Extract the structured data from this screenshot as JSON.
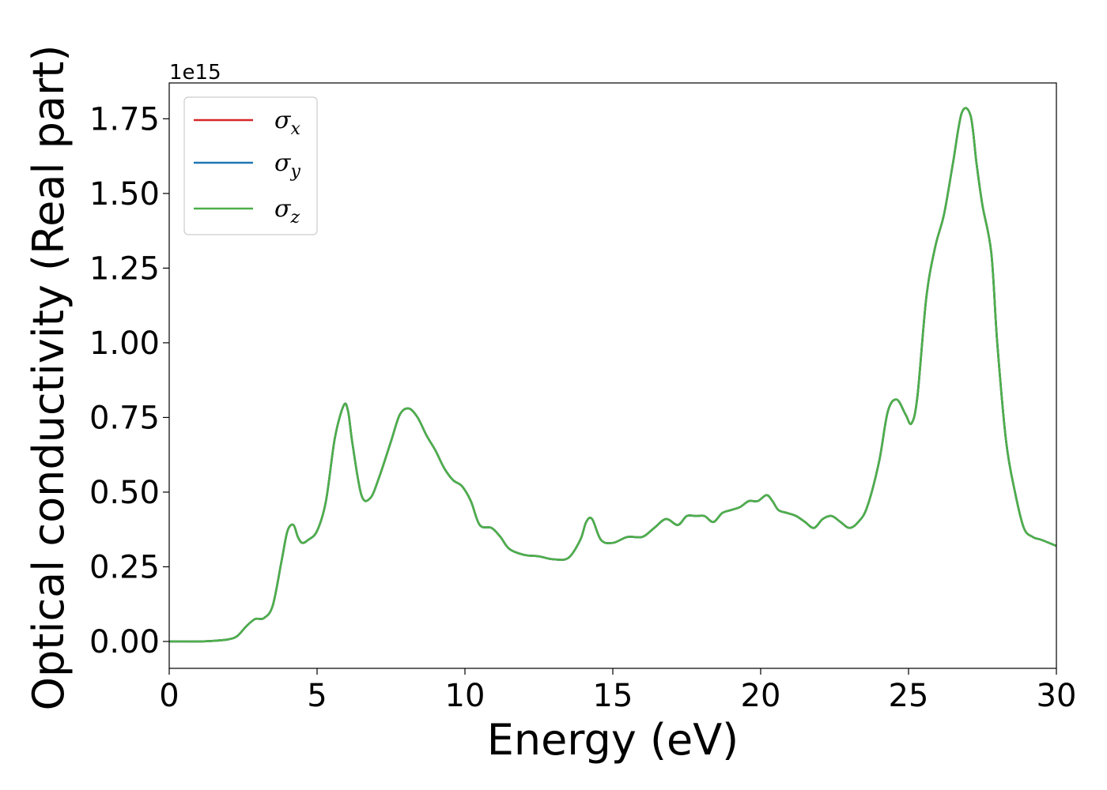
{
  "chart_data": {
    "type": "line",
    "title": "",
    "xlabel": "Energy (eV)",
    "ylabel": "Optical conductivity (Real part)",
    "y_offset_label": "1e15",
    "xlim": [
      0,
      30
    ],
    "ylim": [
      -0.09,
      1.87
    ],
    "x_ticks": [
      0,
      5,
      10,
      15,
      20,
      25,
      30
    ],
    "x_tick_labels": [
      "0",
      "5",
      "10",
      "15",
      "20",
      "25",
      "30"
    ],
    "y_ticks": [
      0.0,
      0.25,
      0.5,
      0.75,
      1.0,
      1.25,
      1.5,
      1.75
    ],
    "y_tick_labels": [
      "0.00",
      "0.25",
      "0.50",
      "0.75",
      "1.00",
      "1.25",
      "1.50",
      "1.75"
    ],
    "grid": false,
    "legend_position": "top-left",
    "colors": {
      "x": "#d62728",
      "y": "#1f77b4",
      "z": "#4daf4a"
    },
    "x": [
      0,
      0.5,
      1,
      1.5,
      2,
      2.3,
      2.6,
      2.9,
      3.2,
      3.5,
      3.8,
      4.0,
      4.2,
      4.35,
      4.5,
      4.7,
      5.0,
      5.3,
      5.6,
      5.9,
      6.05,
      6.2,
      6.5,
      6.8,
      7.1,
      7.5,
      7.8,
      8.1,
      8.4,
      8.7,
      9.0,
      9.3,
      9.6,
      9.9,
      10.2,
      10.5,
      10.9,
      11.2,
      11.5,
      12.0,
      12.5,
      13.0,
      13.5,
      13.9,
      14.1,
      14.3,
      14.6,
      15.0,
      15.5,
      16.0,
      16.4,
      16.8,
      17.2,
      17.5,
      17.8,
      18.1,
      18.4,
      18.7,
      19.0,
      19.3,
      19.6,
      19.9,
      20.2,
      20.4,
      20.6,
      20.9,
      21.2,
      21.5,
      21.8,
      22.1,
      22.4,
      22.7,
      23.0,
      23.3,
      23.6,
      24.0,
      24.3,
      24.6,
      24.9,
      25.1,
      25.3,
      25.6,
      25.9,
      26.2,
      26.5,
      26.8,
      27.1,
      27.3,
      27.5,
      27.8,
      28.0,
      28.3,
      28.6,
      28.9,
      29.2,
      29.5,
      30
    ],
    "series": [
      {
        "name": "x",
        "values": [
          0.0,
          0.0,
          0.0,
          0.002,
          0.007,
          0.018,
          0.05,
          0.075,
          0.078,
          0.12,
          0.27,
          0.37,
          0.39,
          0.35,
          0.33,
          0.34,
          0.37,
          0.47,
          0.68,
          0.79,
          0.77,
          0.66,
          0.49,
          0.48,
          0.55,
          0.67,
          0.76,
          0.78,
          0.75,
          0.69,
          0.64,
          0.58,
          0.54,
          0.52,
          0.47,
          0.39,
          0.38,
          0.35,
          0.31,
          0.29,
          0.285,
          0.275,
          0.28,
          0.34,
          0.4,
          0.41,
          0.34,
          0.33,
          0.35,
          0.35,
          0.38,
          0.41,
          0.39,
          0.42,
          0.42,
          0.42,
          0.4,
          0.43,
          0.44,
          0.45,
          0.47,
          0.47,
          0.49,
          0.47,
          0.44,
          0.43,
          0.42,
          0.4,
          0.38,
          0.41,
          0.42,
          0.4,
          0.38,
          0.4,
          0.45,
          0.6,
          0.77,
          0.81,
          0.76,
          0.73,
          0.82,
          1.15,
          1.32,
          1.43,
          1.6,
          1.77,
          1.76,
          1.6,
          1.46,
          1.3,
          1.0,
          0.67,
          0.5,
          0.38,
          0.35,
          0.34,
          0.32
        ]
      },
      {
        "name": "y",
        "values": [
          0.0,
          0.0,
          0.0,
          0.002,
          0.007,
          0.018,
          0.05,
          0.075,
          0.078,
          0.12,
          0.27,
          0.37,
          0.39,
          0.35,
          0.33,
          0.34,
          0.37,
          0.47,
          0.68,
          0.79,
          0.77,
          0.66,
          0.49,
          0.48,
          0.55,
          0.67,
          0.76,
          0.78,
          0.75,
          0.69,
          0.64,
          0.58,
          0.54,
          0.52,
          0.47,
          0.39,
          0.38,
          0.35,
          0.31,
          0.29,
          0.285,
          0.275,
          0.28,
          0.34,
          0.4,
          0.41,
          0.34,
          0.33,
          0.35,
          0.35,
          0.38,
          0.41,
          0.39,
          0.42,
          0.42,
          0.42,
          0.4,
          0.43,
          0.44,
          0.45,
          0.47,
          0.47,
          0.49,
          0.47,
          0.44,
          0.43,
          0.42,
          0.4,
          0.38,
          0.41,
          0.42,
          0.4,
          0.38,
          0.4,
          0.45,
          0.6,
          0.77,
          0.81,
          0.76,
          0.73,
          0.82,
          1.15,
          1.32,
          1.43,
          1.6,
          1.77,
          1.76,
          1.6,
          1.46,
          1.3,
          1.0,
          0.67,
          0.5,
          0.38,
          0.35,
          0.34,
          0.32
        ]
      },
      {
        "name": "z",
        "values": [
          0.0,
          0.0,
          0.0,
          0.002,
          0.007,
          0.018,
          0.05,
          0.075,
          0.078,
          0.12,
          0.27,
          0.37,
          0.39,
          0.35,
          0.33,
          0.34,
          0.37,
          0.47,
          0.68,
          0.79,
          0.77,
          0.66,
          0.49,
          0.48,
          0.55,
          0.67,
          0.76,
          0.78,
          0.75,
          0.69,
          0.64,
          0.58,
          0.54,
          0.52,
          0.47,
          0.39,
          0.38,
          0.35,
          0.31,
          0.29,
          0.285,
          0.275,
          0.28,
          0.34,
          0.4,
          0.41,
          0.34,
          0.33,
          0.35,
          0.35,
          0.38,
          0.41,
          0.39,
          0.42,
          0.42,
          0.42,
          0.4,
          0.43,
          0.44,
          0.45,
          0.47,
          0.47,
          0.49,
          0.47,
          0.44,
          0.43,
          0.42,
          0.4,
          0.38,
          0.41,
          0.42,
          0.4,
          0.38,
          0.4,
          0.45,
          0.6,
          0.77,
          0.81,
          0.76,
          0.73,
          0.82,
          1.15,
          1.32,
          1.43,
          1.6,
          1.77,
          1.76,
          1.6,
          1.46,
          1.3,
          1.0,
          0.67,
          0.5,
          0.38,
          0.35,
          0.34,
          0.32
        ]
      }
    ],
    "legend": [
      {
        "symbol": "σ",
        "sub": "x",
        "series": "x"
      },
      {
        "symbol": "σ",
        "sub": "y",
        "series": "y"
      },
      {
        "symbol": "σ",
        "sub": "z",
        "series": "z"
      }
    ]
  }
}
